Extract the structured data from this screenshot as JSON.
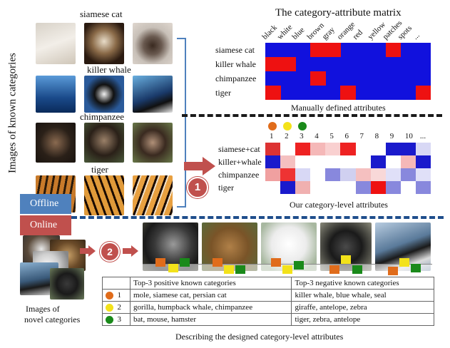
{
  "left_panel": {
    "vertical_label": "Images of known categories",
    "category_labels": [
      "siamese cat",
      "killer whale",
      "chimpanzee",
      "tiger"
    ],
    "offline_label": "Offline",
    "online_label": "Online",
    "novel_label_line1": "Images of",
    "novel_label_line2": "novel categories"
  },
  "matrix_top": {
    "title": "The category-attribute matrix",
    "attributes": [
      "black",
      "white",
      "blue",
      "brown",
      "gray",
      "orange",
      "red",
      "yellow",
      "patches",
      "spots",
      "..."
    ],
    "rows": [
      "siamese cat",
      "killer whale",
      "chimpanzee",
      "tiger"
    ],
    "caption": "Manually defined attributes",
    "cells": [
      [
        0,
        0,
        0,
        1,
        1,
        0,
        0,
        0,
        1,
        0,
        0
      ],
      [
        1,
        1,
        0,
        0,
        0,
        0,
        0,
        0,
        0,
        0,
        0
      ],
      [
        0,
        0,
        0,
        1,
        0,
        0,
        0,
        0,
        0,
        0,
        0
      ],
      [
        1,
        0,
        0,
        0,
        0,
        1,
        0,
        0,
        0,
        0,
        1
      ]
    ]
  },
  "matrix_bottom": {
    "index_labels": [
      "1",
      "2",
      "3",
      "4",
      "5",
      "6",
      "7",
      "8",
      "9",
      "10",
      "..."
    ],
    "rows": [
      "siamese+cat",
      "killer+whale",
      "chimpanzee",
      "tiger"
    ],
    "caption": "Our category-level attributes",
    "cells": [
      [
        "#dd3333",
        "#ffffff",
        "#ee2222",
        "#f5b8b8",
        "#f9d0d0",
        "#ee2222",
        "#ffffff",
        "#ffffff",
        "#1a1acc",
        "#1a1acc",
        "#d8d8f5"
      ],
      [
        "#1a1acc",
        "#f5c0c0",
        "#ffffff",
        "#ffffff",
        "#ffffff",
        "#ffffff",
        "#ffffff",
        "#1a1acc",
        "#ffffff",
        "#f5b8b8",
        "#1a1acc"
      ],
      [
        "#f0a0a0",
        "#ee3333",
        "#d8d8f5",
        "#ffffff",
        "#8888dd",
        "#d0d0f0",
        "#f5c0c0",
        "#f8d8d8",
        "#e0e0f8",
        "#8888dd",
        "#e0e0f8"
      ],
      [
        "#ffffff",
        "#1a1acc",
        "#f0b0b0",
        "#ffffff",
        "#ffffff",
        "#ffffff",
        "#8888dd",
        "#ee1111",
        "#8888dd",
        "#ffffff",
        "#8888dd"
      ]
    ],
    "dot_colors": [
      "#e06c1b",
      "#f3e21a",
      "#1a8a1a"
    ]
  },
  "steps": {
    "step1": "1",
    "step2": "2"
  },
  "colors": {
    "matrix_red": "#ee1111",
    "matrix_blue": "#1111dd",
    "offline_bg": "#4f81bd",
    "online_bg": "#c0504d",
    "arrow": "#c0504d",
    "dash": "#1a1a1a",
    "dash_blue": "#1f4e8c",
    "bracket": "#4f81bd"
  },
  "legend_table": {
    "header_pos": "Top-3 positive known categories",
    "header_neg": "Top-3 negative known categories",
    "rows": [
      {
        "num": "1",
        "dot": "#e06c1b",
        "pos": "mole, siamese cat, persian cat",
        "neg": "killer whale, blue whale, seal"
      },
      {
        "num": "2",
        "dot": "#f3e21a",
        "pos": "gorilla, humpback whale, chimpanzee",
        "neg": "giraffe, antelope, zebra"
      },
      {
        "num": "3",
        "dot": "#1a8a1a",
        "pos": "bat, mouse, hamster",
        "neg": "tiger, zebra, antelope"
      }
    ],
    "caption": "Describing the designed category-level attributes"
  }
}
